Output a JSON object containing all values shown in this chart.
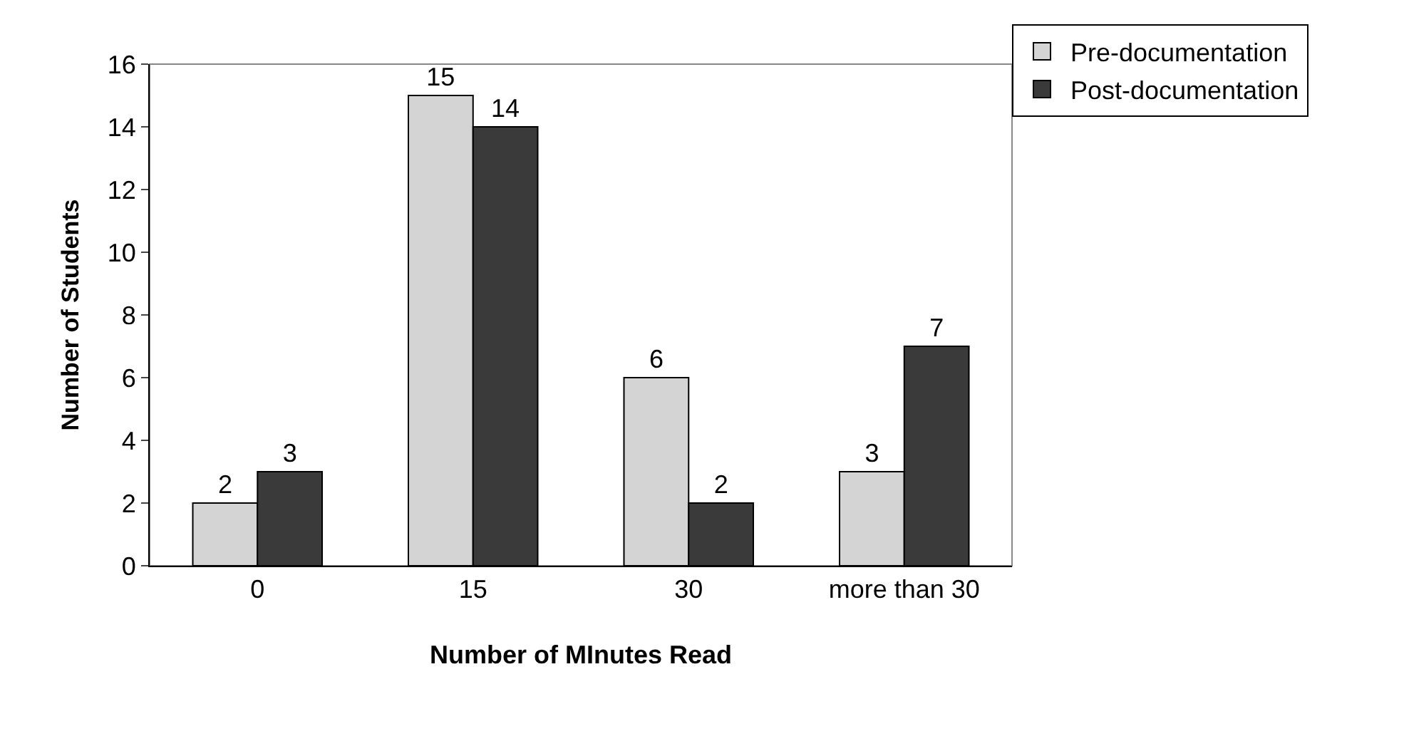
{
  "chart_data": {
    "type": "bar",
    "xlabel": "Number of MInutes Read",
    "ylabel": "Number of Students",
    "categories": [
      "0",
      "15",
      "30",
      "more than 30"
    ],
    "series": [
      {
        "name": "Pre-documentation",
        "color": "#d4d4d4",
        "values": [
          2,
          15,
          6,
          3
        ]
      },
      {
        "name": "Post-documentation",
        "color": "#3a3a3a",
        "values": [
          3,
          14,
          2,
          7
        ]
      }
    ],
    "ylim": [
      0,
      16
    ],
    "yticks": [
      0,
      2,
      4,
      6,
      8,
      10,
      12,
      14,
      16
    ],
    "data_labels": true,
    "grid": false,
    "legend": "top right"
  }
}
